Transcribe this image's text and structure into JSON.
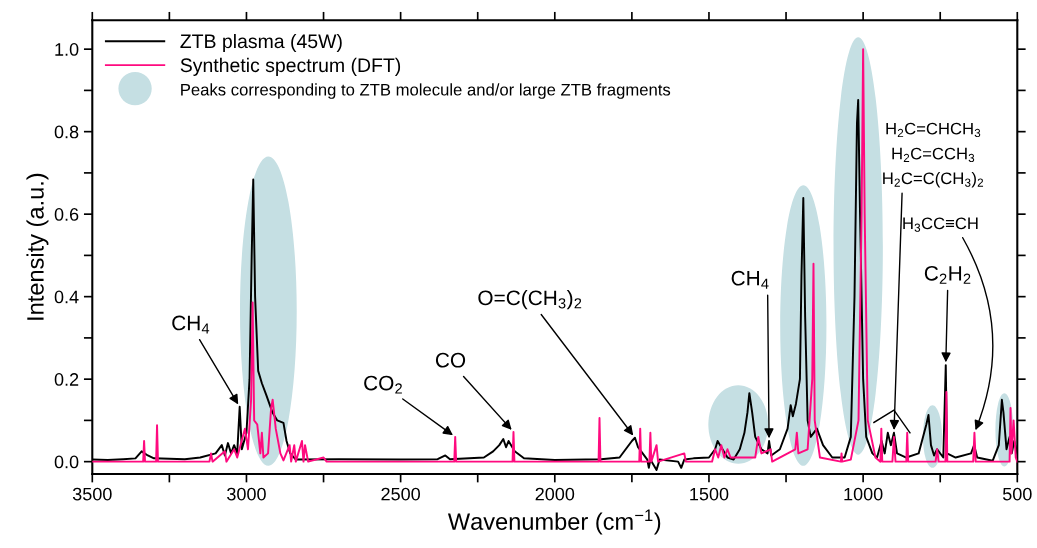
{
  "chart_data": {
    "type": "line",
    "xlabel": "Wavenumber (cm$^{−1}$)",
    "ylabel": "Intensity (a.u.)",
    "xlim": [
      3500,
      500
    ],
    "ylim": [
      -0.03,
      1.07
    ],
    "xticks": [
      3500,
      {
        "value": 3250,
        "label": null
      },
      3000,
      {
        "value": 2750,
        "label": null
      },
      2500,
      {
        "value": 2250,
        "label": null
      },
      2000,
      {
        "value": 1750,
        "label": null
      },
      1500,
      {
        "value": 1250,
        "label": null
      },
      1000,
      {
        "value": 750,
        "label": null
      },
      500
    ],
    "yticks": [
      {
        "value": 0,
        "label": "0.0"
      },
      {
        "value": 0.1,
        "label": null
      },
      {
        "value": 0.2,
        "label": "0.2"
      },
      {
        "value": 0.3,
        "label": null
      },
      {
        "value": 0.4,
        "label": "0.4"
      },
      {
        "value": 0.5,
        "label": null
      },
      {
        "value": 0.6,
        "label": "0.6"
      },
      {
        "value": 0.7,
        "label": null
      },
      {
        "value": 0.8,
        "label": "0.8"
      },
      {
        "value": 0.9,
        "label": null
      },
      {
        "value": 1.0,
        "label": "1.0"
      }
    ],
    "grid": false,
    "legend": "top left",
    "series": [
      {
        "name": "ZTB plasma (45W)",
        "color": "#000000",
        "x": [
          3500,
          3450,
          3400,
          3360,
          3340,
          3320,
          3300,
          3200,
          3150,
          3100,
          3080,
          3070,
          3060,
          3050,
          3040,
          3030,
          3022,
          3015,
          3000,
          2990,
          2983,
          2978,
          2972,
          2962,
          2950,
          2935,
          2916,
          2900,
          2880,
          2870,
          2858,
          2840,
          2700,
          2500,
          2380,
          2355,
          2340,
          2230,
          2200,
          2180,
          2167,
          2158,
          2150,
          2130,
          2100,
          2000,
          1850,
          1790,
          1770,
          1750,
          1740,
          1730,
          1715,
          1700,
          1695,
          1690,
          1670,
          1660,
          1600,
          1590,
          1580,
          1550,
          1500,
          1480,
          1472,
          1460,
          1440,
          1420,
          1400,
          1385,
          1375,
          1369,
          1360,
          1350,
          1330,
          1310,
          1305,
          1298,
          1270,
          1245,
          1235,
          1228,
          1218,
          1205,
          1200,
          1194,
          1188,
          1180,
          1170,
          1150,
          1130,
          1100,
          1060,
          1040,
          1028,
          1020,
          1016,
          1010,
          1000,
          990,
          970,
          955,
          940,
          930,
          920,
          910,
          900,
          890,
          860,
          820,
          795,
          788,
          780,
          770,
          760,
          740,
          732,
          728,
          700,
          650,
          640,
          630,
          580,
          560,
          550,
          545,
          535,
          525,
          518,
          510,
          500
        ],
        "values": [
          0.005,
          0.004,
          0.006,
          0.008,
          0.025,
          0.015,
          0.008,
          0.006,
          0.01,
          0.02,
          0.04,
          0.015,
          0.045,
          0.02,
          0.04,
          0.02,
          0.133,
          0.03,
          0.07,
          0.2,
          0.5,
          0.684,
          0.4,
          0.22,
          0.19,
          0.16,
          0.12,
          0.1,
          0.094,
          0.05,
          0.02,
          0.005,
          0.006,
          0.005,
          0.006,
          0.015,
          0.006,
          0.01,
          0.025,
          0.04,
          0.055,
          0.035,
          0.05,
          0.025,
          0.008,
          0.004,
          0.006,
          0.01,
          0.03,
          0.05,
          0.058,
          0.035,
          0.02,
          0.005,
          -0.015,
          0.005,
          -0.02,
          0.005,
          0.0,
          -0.015,
          0.005,
          0.008,
          0.01,
          0.03,
          0.05,
          0.035,
          0.01,
          0.005,
          0.03,
          0.07,
          0.12,
          0.166,
          0.12,
          0.06,
          0.03,
          0.02,
          0.05,
          0.015,
          0.03,
          0.08,
          0.137,
          0.11,
          0.14,
          0.2,
          0.45,
          0.639,
          0.35,
          0.1,
          0.06,
          0.08,
          0.04,
          0.01,
          0.01,
          0.06,
          0.4,
          0.82,
          0.877,
          0.6,
          0.2,
          0.06,
          0.02,
          0.01,
          0.05,
          0.02,
          0.07,
          0.04,
          0.07,
          0.02,
          0.01,
          0.02,
          0.09,
          0.113,
          0.04,
          0.015,
          0.03,
          0.01,
          0.234,
          0.02,
          0.01,
          0.02,
          0.04,
          0.01,
          0.002,
          0.04,
          0.15,
          0.12,
          0.03,
          0.06,
          0.02,
          0.05,
          0.02
        ]
      },
      {
        "name": "Synthetic spectrum (DFT)",
        "color": "#ff0a7f",
        "x": [
          3500,
          3335,
          3332,
          3329,
          3293,
          3290,
          3287,
          3120,
          3115,
          3110,
          3070,
          3065,
          3040,
          3030,
          3005,
          2995,
          2985,
          2980,
          2975,
          2965,
          2955,
          2950,
          2945,
          2930,
          2920,
          2915,
          2905,
          2890,
          2880,
          2860,
          2855,
          2845,
          2840,
          2820,
          2815,
          2810,
          2800,
          2750,
          2740,
          2326,
          2323,
          2320,
          2137,
          2134,
          2131,
          1858,
          1855,
          1852,
          1726,
          1723,
          1720,
          1693,
          1690,
          1687,
          1670,
          1665,
          1580,
          1575,
          1490,
          1480,
          1470,
          1460,
          1450,
          1440,
          1430,
          1350,
          1340,
          1330,
          1300,
          1295,
          1220,
          1215,
          1210,
          1180,
          1165,
          1161,
          1157,
          1140,
          1072,
          1070,
          1068,
          1040,
          1015,
          1005,
          1000,
          995,
          985,
          960,
          944,
          941,
          938,
          905,
          900,
          895,
          860,
          857,
          854,
          765,
          760,
          755,
          733,
          730,
          727,
          643,
          639,
          635,
          525,
          522,
          519,
          512,
          505,
          500
        ],
        "values": [
          0,
          0,
          0.05,
          0,
          0,
          0.088,
          0,
          0,
          0.02,
          0,
          0.025,
          0,
          0.03,
          0.01,
          0.08,
          0.03,
          0.15,
          0.386,
          0.1,
          0.09,
          0.02,
          0.07,
          0.01,
          0.02,
          0.13,
          0.15,
          0.08,
          0.02,
          0.003,
          0.04,
          0,
          0.04,
          0,
          0.05,
          0,
          0.04,
          0,
          0.01,
          0,
          0,
          0.06,
          0,
          0,
          0.072,
          0,
          0,
          0.106,
          0,
          0,
          0.08,
          0,
          0,
          0.07,
          0,
          0.04,
          0,
          0.02,
          0,
          0,
          0.03,
          0.01,
          0.04,
          0.01,
          0.03,
          0.01,
          0.01,
          0.06,
          0.02,
          0.03,
          0,
          0.03,
          0.07,
          0.02,
          0.03,
          0.2,
          0.48,
          0.1,
          0.01,
          0,
          0.02,
          0,
          0.005,
          0.1,
          0.6,
          1.0,
          0.6,
          0.1,
          0.01,
          0,
          0.08,
          0,
          0,
          0.06,
          0,
          0,
          0.07,
          0,
          0,
          0.03,
          0,
          0,
          0.169,
          0,
          0,
          0.07,
          0,
          0,
          0.13,
          0.02,
          0.1,
          0.01,
          0
        ]
      }
    ],
    "annotations": [
      {
        "text": "CH$_{4}$",
        "x": 3022,
        "y": 0.133
      },
      {
        "text": "CO$_{2}$",
        "x": 2323,
        "y": 0.06
      },
      {
        "text": "CO",
        "x": 2134,
        "y": 0.072
      },
      {
        "text": "O=C(CH$_{3}$)$_{2}$",
        "x": 1740,
        "y": 0.058
      },
      {
        "text": "CH$_{4}$",
        "x": 1305,
        "y": 0.05
      },
      "H$_{2}$C=CHCH$_{3}$",
      "H$_{2}$C=CCH$_{3}$",
      {
        "text": "H$_{2}$C=C(CH$_{3}$)$_{2}$",
        "x": 900,
        "y": 0.07
      },
      {
        "text": "H$_{3}$CC≡CH",
        "x": 639,
        "y": 0.07
      },
      {
        "text": "C$_{2}$H$_{2}$",
        "x": 732,
        "y": 0.234
      },
      "Peaks corresponding to ZTB molecule and/or large ZTB fragments"
    ]
  }
}
